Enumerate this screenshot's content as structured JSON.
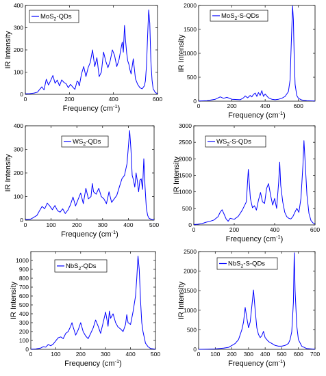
{
  "chart_data": [
    {
      "type": "line",
      "series": [
        {
          "name": "MoS2-QDs",
          "label_main": "MoS",
          "label_sub": "2",
          "label_rest": "-QDs",
          "color": "#0000ff",
          "x": [
            0,
            20,
            40,
            55,
            65,
            75,
            85,
            95,
            105,
            115,
            125,
            135,
            145,
            155,
            165,
            175,
            185,
            195,
            205,
            215,
            225,
            235,
            240,
            245,
            255,
            265,
            275,
            285,
            295,
            305,
            315,
            325,
            335,
            345,
            355,
            365,
            375,
            385,
            395,
            405,
            415,
            425,
            435,
            440,
            445,
            450,
            455,
            460,
            465,
            470,
            475,
            480,
            490,
            500,
            510,
            520,
            530,
            540,
            545,
            550,
            555,
            560,
            565,
            570,
            575,
            580,
            590,
            600
          ],
          "y": [
            2,
            3,
            6,
            10,
            22,
            34,
            20,
            68,
            42,
            62,
            85,
            50,
            64,
            38,
            65,
            54,
            48,
            30,
            45,
            33,
            22,
            60,
            55,
            38,
            92,
            125,
            80,
            120,
            145,
            200,
            125,
            165,
            80,
            100,
            190,
            150,
            120,
            150,
            200,
            175,
            125,
            155,
            210,
            235,
            190,
            310,
            240,
            185,
            150,
            135,
            110,
            92,
            160,
            70,
            45,
            30,
            25,
            38,
            60,
            130,
            260,
            380,
            320,
            150,
            65,
            25,
            8,
            3
          ]
        }
      ],
      "ylim": [
        0,
        400
      ],
      "xlim": [
        0,
        600
      ],
      "xticks": [
        0,
        200,
        400,
        600
      ],
      "yticks": [
        0,
        100,
        200,
        300,
        400
      ],
      "xlabel": "Frequency (cm",
      "xlabel_sup": "-1",
      "xlabel_end": ")",
      "ylabel": "IR Intensity"
    },
    {
      "type": "line",
      "series": [
        {
          "name": "MoS2-S-QDs",
          "label_main": "MoS",
          "label_sub": "2",
          "label_rest": "-S-QDs",
          "color": "#0000ff",
          "x": [
            0,
            50,
            100,
            130,
            150,
            170,
            200,
            250,
            270,
            280,
            295,
            310,
            320,
            330,
            340,
            350,
            360,
            370,
            380,
            390,
            400,
            410,
            420,
            440,
            460,
            480,
            500,
            520,
            540,
            550,
            555,
            560,
            565,
            570,
            575,
            580,
            590,
            600,
            620,
            650,
            700
          ],
          "y": [
            5,
            10,
            40,
            90,
            60,
            80,
            40,
            30,
            70,
            110,
            70,
            120,
            90,
            140,
            170,
            100,
            180,
            120,
            220,
            100,
            150,
            110,
            70,
            40,
            30,
            40,
            60,
            100,
            200,
            450,
            1000,
            1500,
            1990,
            1700,
            900,
            350,
            120,
            60,
            25,
            10,
            5
          ]
        }
      ],
      "ylim": [
        0,
        2000
      ],
      "xlim": [
        0,
        700
      ],
      "xticks": [
        0,
        200,
        400,
        600
      ],
      "yticks": [
        0,
        500,
        1000,
        1500,
        2000
      ],
      "xlabel": "Frequency (cm",
      "xlabel_sup": "-1",
      "xlabel_end": ")",
      "ylabel": "IR Intensity"
    },
    {
      "type": "line",
      "series": [
        {
          "name": "WS2-QDs",
          "label_main": "WS",
          "label_sub": "2",
          "label_rest": "-QDs",
          "color": "#0000ff",
          "x": [
            0,
            20,
            30,
            45,
            55,
            65,
            75,
            85,
            95,
            105,
            115,
            125,
            135,
            145,
            155,
            165,
            175,
            185,
            195,
            205,
            215,
            225,
            235,
            245,
            255,
            260,
            265,
            275,
            285,
            295,
            305,
            315,
            325,
            335,
            345,
            355,
            365,
            375,
            385,
            395,
            400,
            405,
            410,
            415,
            420,
            425,
            430,
            435,
            440,
            445,
            450,
            455,
            460,
            465,
            470,
            475,
            480,
            490,
            500
          ],
          "y": [
            2,
            4,
            10,
            20,
            40,
            58,
            48,
            72,
            60,
            44,
            62,
            40,
            34,
            48,
            28,
            42,
            65,
            98,
            60,
            88,
            115,
            70,
            135,
            90,
            100,
            155,
            120,
            110,
            135,
            100,
            90,
            70,
            120,
            75,
            90,
            105,
            140,
            175,
            190,
            240,
            310,
            380,
            300,
            190,
            170,
            140,
            200,
            165,
            120,
            170,
            175,
            130,
            260,
            140,
            50,
            20,
            8,
            3,
            1
          ]
        }
      ],
      "ylim": [
        0,
        400
      ],
      "xlim": [
        0,
        500
      ],
      "xticks": [
        0,
        100,
        200,
        300,
        400,
        500
      ],
      "yticks": [
        0,
        100,
        200,
        300,
        400
      ],
      "xlabel": "Frequency (cm",
      "xlabel_sup": "-1",
      "xlabel_end": ")",
      "ylabel": "IR Intensity"
    },
    {
      "type": "line",
      "series": [
        {
          "name": "WS2-S-QDs",
          "label_main": "WS",
          "label_sub": "2",
          "label_rest": "-S-QDs",
          "color": "#0000ff",
          "x": [
            0,
            20,
            40,
            60,
            80,
            100,
            120,
            130,
            140,
            150,
            160,
            170,
            180,
            200,
            220,
            240,
            260,
            270,
            280,
            290,
            300,
            310,
            320,
            330,
            340,
            350,
            360,
            370,
            380,
            390,
            400,
            410,
            420,
            425,
            430,
            440,
            450,
            460,
            470,
            480,
            490,
            500,
            510,
            520,
            530,
            540,
            545,
            550,
            560,
            570,
            580,
            590,
            600
          ],
          "y": [
            10,
            20,
            40,
            80,
            110,
            150,
            250,
            380,
            460,
            320,
            180,
            110,
            200,
            170,
            260,
            450,
            700,
            1680,
            800,
            520,
            580,
            450,
            750,
            980,
            700,
            650,
            1100,
            1250,
            900,
            600,
            800,
            500,
            1300,
            1900,
            1200,
            700,
            380,
            250,
            200,
            180,
            250,
            380,
            500,
            380,
            800,
            1800,
            2550,
            2000,
            900,
            350,
            130,
            60,
            30
          ]
        }
      ],
      "ylim": [
        0,
        3000
      ],
      "xlim": [
        0,
        600
      ],
      "xticks": [
        0,
        200,
        400,
        600
      ],
      "yticks": [
        0,
        500,
        1000,
        1500,
        2000,
        2500,
        3000
      ],
      "xlabel": "Frequency (cm",
      "xlabel_sup": "-1",
      "xlabel_end": ")",
      "ylabel": "IR Intensity"
    },
    {
      "type": "line",
      "series": [
        {
          "name": "NbS2-QDs",
          "label_main": "NbS",
          "label_sub": "2",
          "label_rest": "-QDs",
          "color": "#0000ff",
          "x": [
            0,
            20,
            40,
            50,
            60,
            70,
            80,
            90,
            100,
            110,
            120,
            130,
            140,
            150,
            160,
            165,
            170,
            180,
            190,
            200,
            210,
            220,
            230,
            240,
            250,
            260,
            270,
            280,
            290,
            300,
            310,
            315,
            320,
            330,
            340,
            350,
            360,
            370,
            380,
            385,
            390,
            400,
            410,
            420,
            425,
            430,
            435,
            440,
            445,
            450,
            460,
            470,
            480,
            500
          ],
          "y": [
            2,
            5,
            15,
            30,
            25,
            55,
            40,
            60,
            95,
            130,
            140,
            120,
            180,
            200,
            260,
            300,
            250,
            160,
            220,
            300,
            200,
            150,
            120,
            180,
            240,
            330,
            260,
            180,
            300,
            420,
            260,
            430,
            350,
            400,
            300,
            250,
            230,
            200,
            280,
            390,
            300,
            280,
            420,
            600,
            800,
            1050,
            900,
            550,
            300,
            200,
            70,
            30,
            10,
            2
          ]
        }
      ],
      "ylim": [
        0,
        1100
      ],
      "xlim": [
        0,
        500
      ],
      "xticks": [
        0,
        100,
        200,
        300,
        400,
        500
      ],
      "yticks": [
        0,
        100,
        200,
        300,
        400,
        500,
        600,
        700,
        800,
        900,
        1000
      ],
      "xlabel": "Frequency (cm",
      "xlabel_sup": "-1",
      "xlabel_end": ")",
      "ylabel": "IR Intensity"
    },
    {
      "type": "line",
      "series": [
        {
          "name": "NbS2-S-QDs",
          "label_main": "NbS",
          "label_sub": "2",
          "label_rest": "-S-QDs",
          "color": "#0000ff",
          "x": [
            0,
            50,
            100,
            150,
            180,
            200,
            220,
            240,
            260,
            270,
            280,
            290,
            300,
            310,
            320,
            330,
            340,
            350,
            360,
            370,
            380,
            390,
            400,
            420,
            440,
            460,
            480,
            500,
            520,
            540,
            550,
            560,
            570,
            575,
            580,
            590,
            600,
            620,
            650,
            700
          ],
          "y": [
            0,
            5,
            10,
            30,
            50,
            100,
            150,
            250,
            500,
            700,
            1070,
            800,
            550,
            700,
            1100,
            1520,
            1000,
            550,
            380,
            300,
            350,
            460,
            300,
            200,
            150,
            100,
            80,
            80,
            100,
            150,
            250,
            450,
            1200,
            2470,
            1500,
            600,
            250,
            80,
            20,
            5
          ]
        }
      ],
      "ylim": [
        0,
        2500
      ],
      "xlim": [
        0,
        700
      ],
      "xticks": [
        0,
        100,
        200,
        300,
        400,
        500,
        600,
        700
      ],
      "yticks": [
        0,
        500,
        1000,
        1500,
        2000,
        2500
      ],
      "xlabel": "Frequency (cm",
      "xlabel_sup": "-1",
      "xlabel_end": ")",
      "ylabel": "IR Intensity"
    }
  ]
}
